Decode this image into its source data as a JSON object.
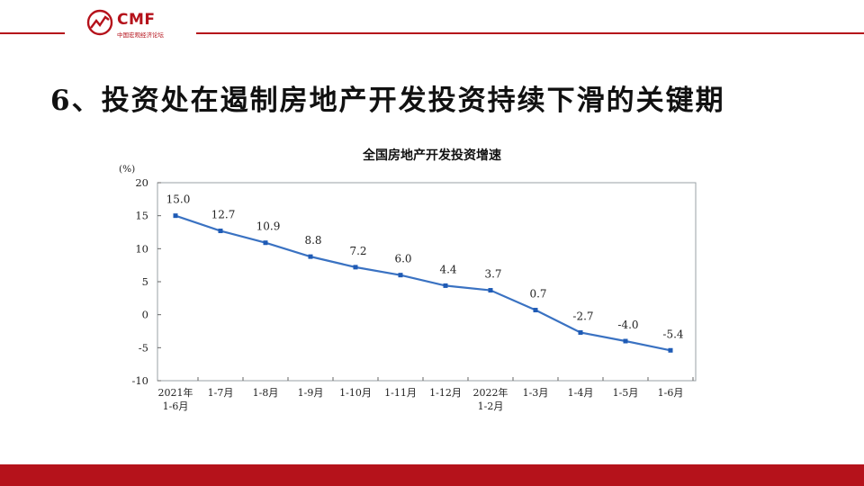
{
  "header": {
    "logo_text": "CMF",
    "logo_subtitle": "中国宏观经济论坛",
    "brand_color": "#b5121b"
  },
  "slide": {
    "title": "6、投资处在遏制房地产开发投资持续下滑的关键期"
  },
  "chart_data": {
    "type": "line",
    "title": "全国房地产开发投资增速",
    "ylabel": "(%)",
    "xlabel": "",
    "ylim": [
      -10,
      20
    ],
    "yticks": [
      20,
      15,
      10,
      5,
      0,
      -5,
      -10
    ],
    "categories": [
      [
        "2021年",
        "1-6月"
      ],
      [
        "1-7月"
      ],
      [
        "1-8月"
      ],
      [
        "1-9月"
      ],
      [
        "1-10月"
      ],
      [
        "1-11月"
      ],
      [
        "1-12月"
      ],
      [
        "2022年",
        "1-2月"
      ],
      [
        "1-3月"
      ],
      [
        "1-4月"
      ],
      [
        "1-5月"
      ],
      [
        "1-6月"
      ]
    ],
    "values": [
      15.0,
      12.7,
      10.9,
      8.8,
      7.2,
      6.0,
      4.4,
      3.7,
      0.7,
      -2.7,
      -4.0,
      -5.4
    ],
    "data_labels": [
      "15.0",
      "12.7",
      "10.9",
      "8.8",
      "7.2",
      "6.0",
      "4.4",
      "3.7",
      "0.7",
      "-2.7",
      "-4.0",
      "-5.4"
    ],
    "line_color": "#3a72c2",
    "grid": false,
    "legend": "none"
  }
}
